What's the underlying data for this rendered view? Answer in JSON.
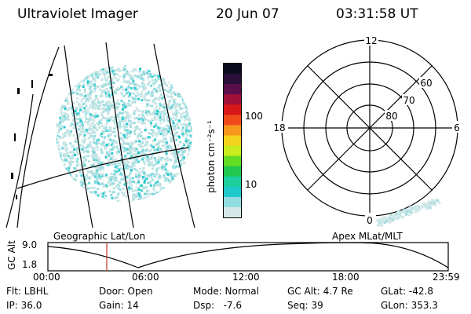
{
  "header": {
    "instrument": "Ultraviolet Imager",
    "date": "20 Jun 07",
    "time": "03:31:58 UT"
  },
  "colorbar": {
    "unit_label": "photon cm⁻²s⁻¹",
    "ticks": [
      "100",
      "10"
    ],
    "colors": [
      "#0b0b1f",
      "#2a0f3a",
      "#5a0f4a",
      "#a0103a",
      "#d81818",
      "#ef4a1c",
      "#f6961c",
      "#f2d21c",
      "#c8ec1c",
      "#64dc24",
      "#20c850",
      "#1ccf9c",
      "#1ec9c9",
      "#8fdde0",
      "#d4e8e8"
    ]
  },
  "polar_plot": {
    "hour_labels": {
      "top": "12",
      "left": "18",
      "right": "6",
      "bottom": "0"
    },
    "lat_labels": [
      "60",
      "70",
      "80"
    ]
  },
  "timeline": {
    "left_title": "Geographic Lat/Lon",
    "right_title": "Apex MLat/MLT",
    "y_axis_label": "GC Alt",
    "y_ticks": [
      "9.0",
      "1.8"
    ],
    "x_ticks": [
      "00:00",
      "06:00",
      "12:00",
      "18:00",
      "23:59"
    ]
  },
  "info": {
    "filter": "Flt: LBHL",
    "door": "Door: Open",
    "mode": "Mode: Normal",
    "gc_alt": "GC Alt: 4.7 Re",
    "glat": "GLat: -42.8",
    "ip": "IP: 36.0",
    "gain": "Gain: 14",
    "dsp": "Dsp:   -7.6",
    "seq": "Seq: 39",
    "glon": "GLon: 353.3"
  }
}
